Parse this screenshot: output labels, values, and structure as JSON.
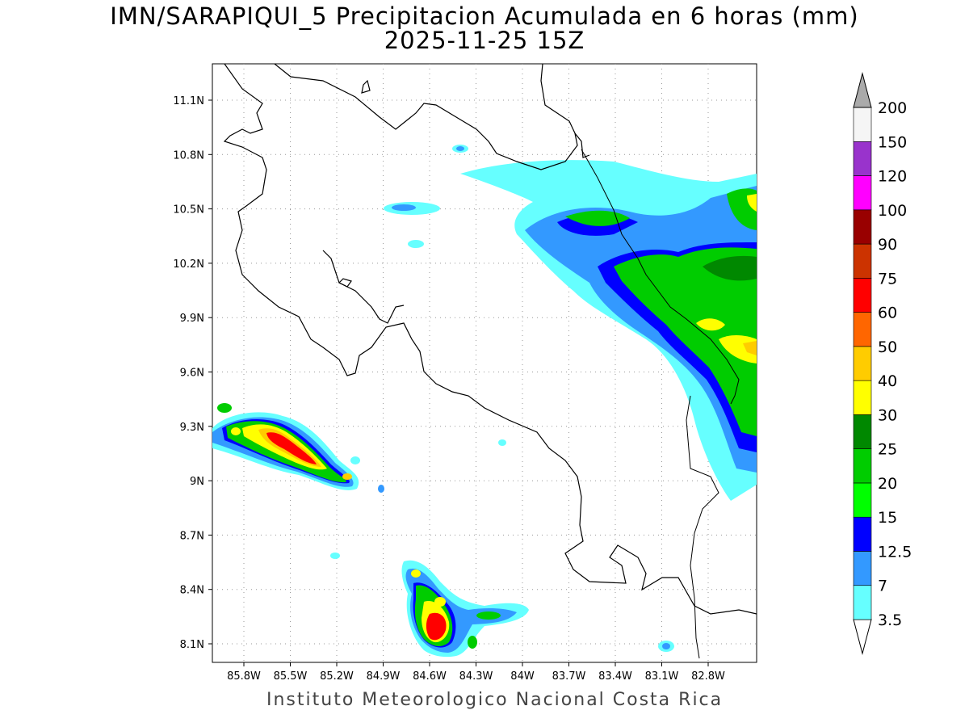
{
  "title_line1": "IMN/SARAPIQUI_5 Precipitacion Acumulada en 6 horas (mm)",
  "title_line2": "2025-11-25 15Z",
  "footer": "Instituto Meteorologico Nacional Costa Rica",
  "map": {
    "lat_ticks": [
      "11.1N",
      "10.8N",
      "10.5N",
      "10.2N",
      "9.9N",
      "9.6N",
      "9.3N",
      "9N",
      "8.7N",
      "8.4N",
      "8.1N"
    ],
    "lon_ticks": [
      "85.8W",
      "85.5W",
      "85.2W",
      "84.9W",
      "84.6W",
      "84.3W",
      "84W",
      "83.7W",
      "83.4W",
      "83.1W",
      "82.8W"
    ]
  },
  "colorbar": {
    "levels": [
      "3.5",
      "7",
      "12.5",
      "15",
      "20",
      "25",
      "30",
      "40",
      "50",
      "60",
      "75",
      "90",
      "100",
      "120",
      "150",
      "200"
    ],
    "colors": [
      "#66ffff",
      "#3399ff",
      "#0000ff",
      "#00ff00",
      "#00cc00",
      "#008800",
      "#ffff00",
      "#ffcc00",
      "#ff6600",
      "#ff0000",
      "#cc3300",
      "#990000",
      "#ff00ff",
      "#9933cc",
      "#f5f5f5",
      "#aaaaaa"
    ]
  }
}
